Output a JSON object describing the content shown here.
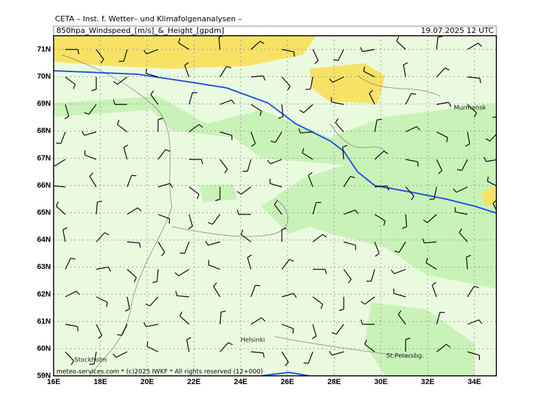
{
  "header": {
    "source": "CETA – Inst. f. Wetter– und Klimafolgenanalysen –",
    "product": "850hpa_Windspeed_[m/s]_&_Height_[gpdm]",
    "valid": "19.07.2025 12 UTC"
  },
  "axes": {
    "lat_labels": [
      "71N",
      "70N",
      "69N",
      "68N",
      "67N",
      "66N",
      "65N",
      "64N",
      "63N",
      "62N",
      "61N",
      "60N",
      "59N"
    ],
    "lon_labels": [
      "16E",
      "18E",
      "20E",
      "22E",
      "24E",
      "26E",
      "28E",
      "30E",
      "32E",
      "34E"
    ]
  },
  "places": [
    {
      "name": "Murmansk"
    },
    {
      "name": "Helsinki"
    },
    {
      "name": "Stockholm"
    },
    {
      "name": "St.Petersbg."
    }
  ],
  "footer": {
    "credit": "meteo-services.com * (c)2025 IWKF * All rights reserved (12+000)"
  }
}
